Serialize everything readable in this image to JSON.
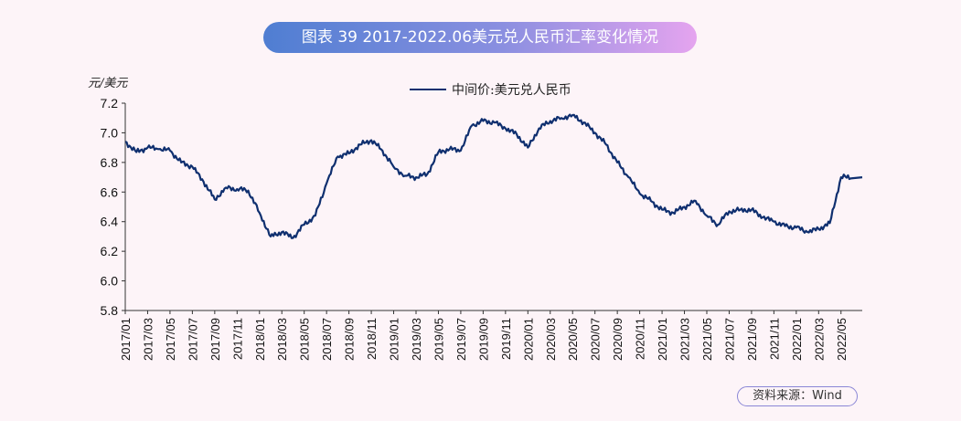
{
  "title": "图表 39  2017-2022.06美元兑人民币汇率变化情况",
  "source": "资料来源：Wind",
  "chart_data": {
    "type": "line",
    "ylabel": "元/美元",
    "ylim": [
      5.8,
      7.2
    ],
    "yticks": [
      "7.2",
      "7.0",
      "6.8",
      "6.6",
      "6.4",
      "6.2",
      "6.0",
      "5.8"
    ],
    "xticks": [
      "2017/01",
      "2017/03",
      "2017/05",
      "2017/07",
      "2017/09",
      "2017/11",
      "2018/01",
      "2018/03",
      "2018/05",
      "2018/07",
      "2018/09",
      "2018/11",
      "2019/01",
      "2019/03",
      "2019/05",
      "2019/07",
      "2019/09",
      "2019/11",
      "2020/01",
      "2020/03",
      "2020/05",
      "2020/07",
      "2020/09",
      "2020/11",
      "2021/01",
      "2021/03",
      "2021/05",
      "2021/07",
      "2021/09",
      "2021/11",
      "2022/01",
      "2022/03",
      "2022/05"
    ],
    "legend_position": "top-center",
    "grid": false,
    "colors": {
      "line": "#0f2f6f",
      "axis": "#333333"
    },
    "series": [
      {
        "name": "中间价:美元兑人民币",
        "x": [
          "2017/01",
          "2017/02",
          "2017/03",
          "2017/04",
          "2017/05",
          "2017/06",
          "2017/07",
          "2017/08",
          "2017/09",
          "2017/10",
          "2017/11",
          "2017/12",
          "2018/01",
          "2018/02",
          "2018/03",
          "2018/04",
          "2018/05",
          "2018/06",
          "2018/07",
          "2018/08",
          "2018/09",
          "2018/10",
          "2018/11",
          "2018/12",
          "2019/01",
          "2019/02",
          "2019/03",
          "2019/04",
          "2019/05",
          "2019/06",
          "2019/07",
          "2019/08",
          "2019/09",
          "2019/10",
          "2019/11",
          "2019/12",
          "2020/01",
          "2020/02",
          "2020/03",
          "2020/04",
          "2020/05",
          "2020/06",
          "2020/07",
          "2020/08",
          "2020/09",
          "2020/10",
          "2020/11",
          "2020/12",
          "2021/01",
          "2021/02",
          "2021/03",
          "2021/04",
          "2021/05",
          "2021/06",
          "2021/07",
          "2021/08",
          "2021/09",
          "2021/10",
          "2021/11",
          "2021/12",
          "2022/01",
          "2022/02",
          "2022/03",
          "2022/04",
          "2022/05",
          "2022/06"
        ],
        "values": [
          6.94,
          6.87,
          6.9,
          6.89,
          6.88,
          6.8,
          6.77,
          6.67,
          6.55,
          6.63,
          6.62,
          6.61,
          6.46,
          6.3,
          6.33,
          6.29,
          6.38,
          6.44,
          6.66,
          6.84,
          6.86,
          6.92,
          6.95,
          6.88,
          6.77,
          6.71,
          6.7,
          6.72,
          6.87,
          6.89,
          6.88,
          7.05,
          7.08,
          7.07,
          7.03,
          6.99,
          6.9,
          7.03,
          7.08,
          7.1,
          7.12,
          7.07,
          7.0,
          6.92,
          6.8,
          6.7,
          6.59,
          6.54,
          6.48,
          6.46,
          6.5,
          6.54,
          6.44,
          6.38,
          6.47,
          6.48,
          6.48,
          6.43,
          6.4,
          6.37,
          6.36,
          6.33,
          6.35,
          6.39,
          6.7,
          6.7
        ]
      }
    ]
  }
}
